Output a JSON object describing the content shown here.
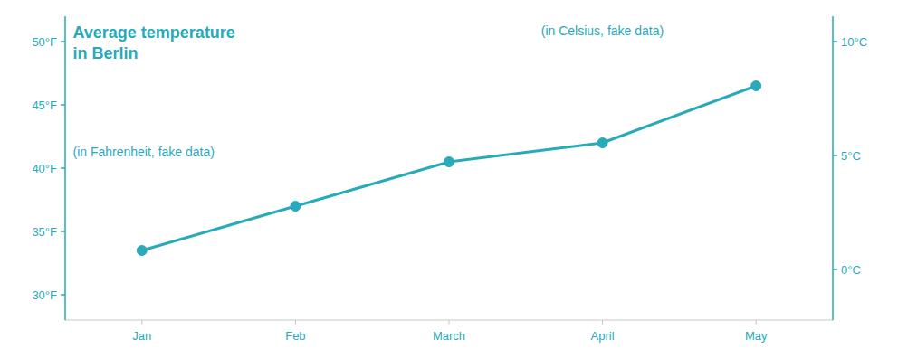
{
  "chart_data": {
    "type": "line",
    "title": "Average temperature\nin Berlin",
    "subtitle": "(in Fahrenheit, fake data)",
    "y2_label": "(in Celsius, fake data)",
    "categories": [
      "Jan",
      "Feb",
      "March",
      "April",
      "May"
    ],
    "series": [
      {
        "color": "#29aabb",
        "marker": "circle",
        "line_style": "solid",
        "values": [
          33.5,
          37.0,
          40.5,
          42.0,
          46.5
        ]
      }
    ],
    "ylim": [
      28,
      52
    ],
    "yticks": [
      {
        "value": 30,
        "label": "30°F"
      },
      {
        "value": 35,
        "label": "35°F"
      },
      {
        "value": 40,
        "label": "40°F"
      },
      {
        "value": 45,
        "label": "45°F"
      },
      {
        "value": 50,
        "label": "50°F"
      }
    ],
    "y2lim": [
      -2.2222222222222223,
      11.11111111111111
    ],
    "y2ticks": [
      {
        "value": 0,
        "label": "0°C"
      },
      {
        "value": 5,
        "label": "5°C"
      },
      {
        "value": 10,
        "label": "10°C"
      }
    ],
    "grid": false
  }
}
